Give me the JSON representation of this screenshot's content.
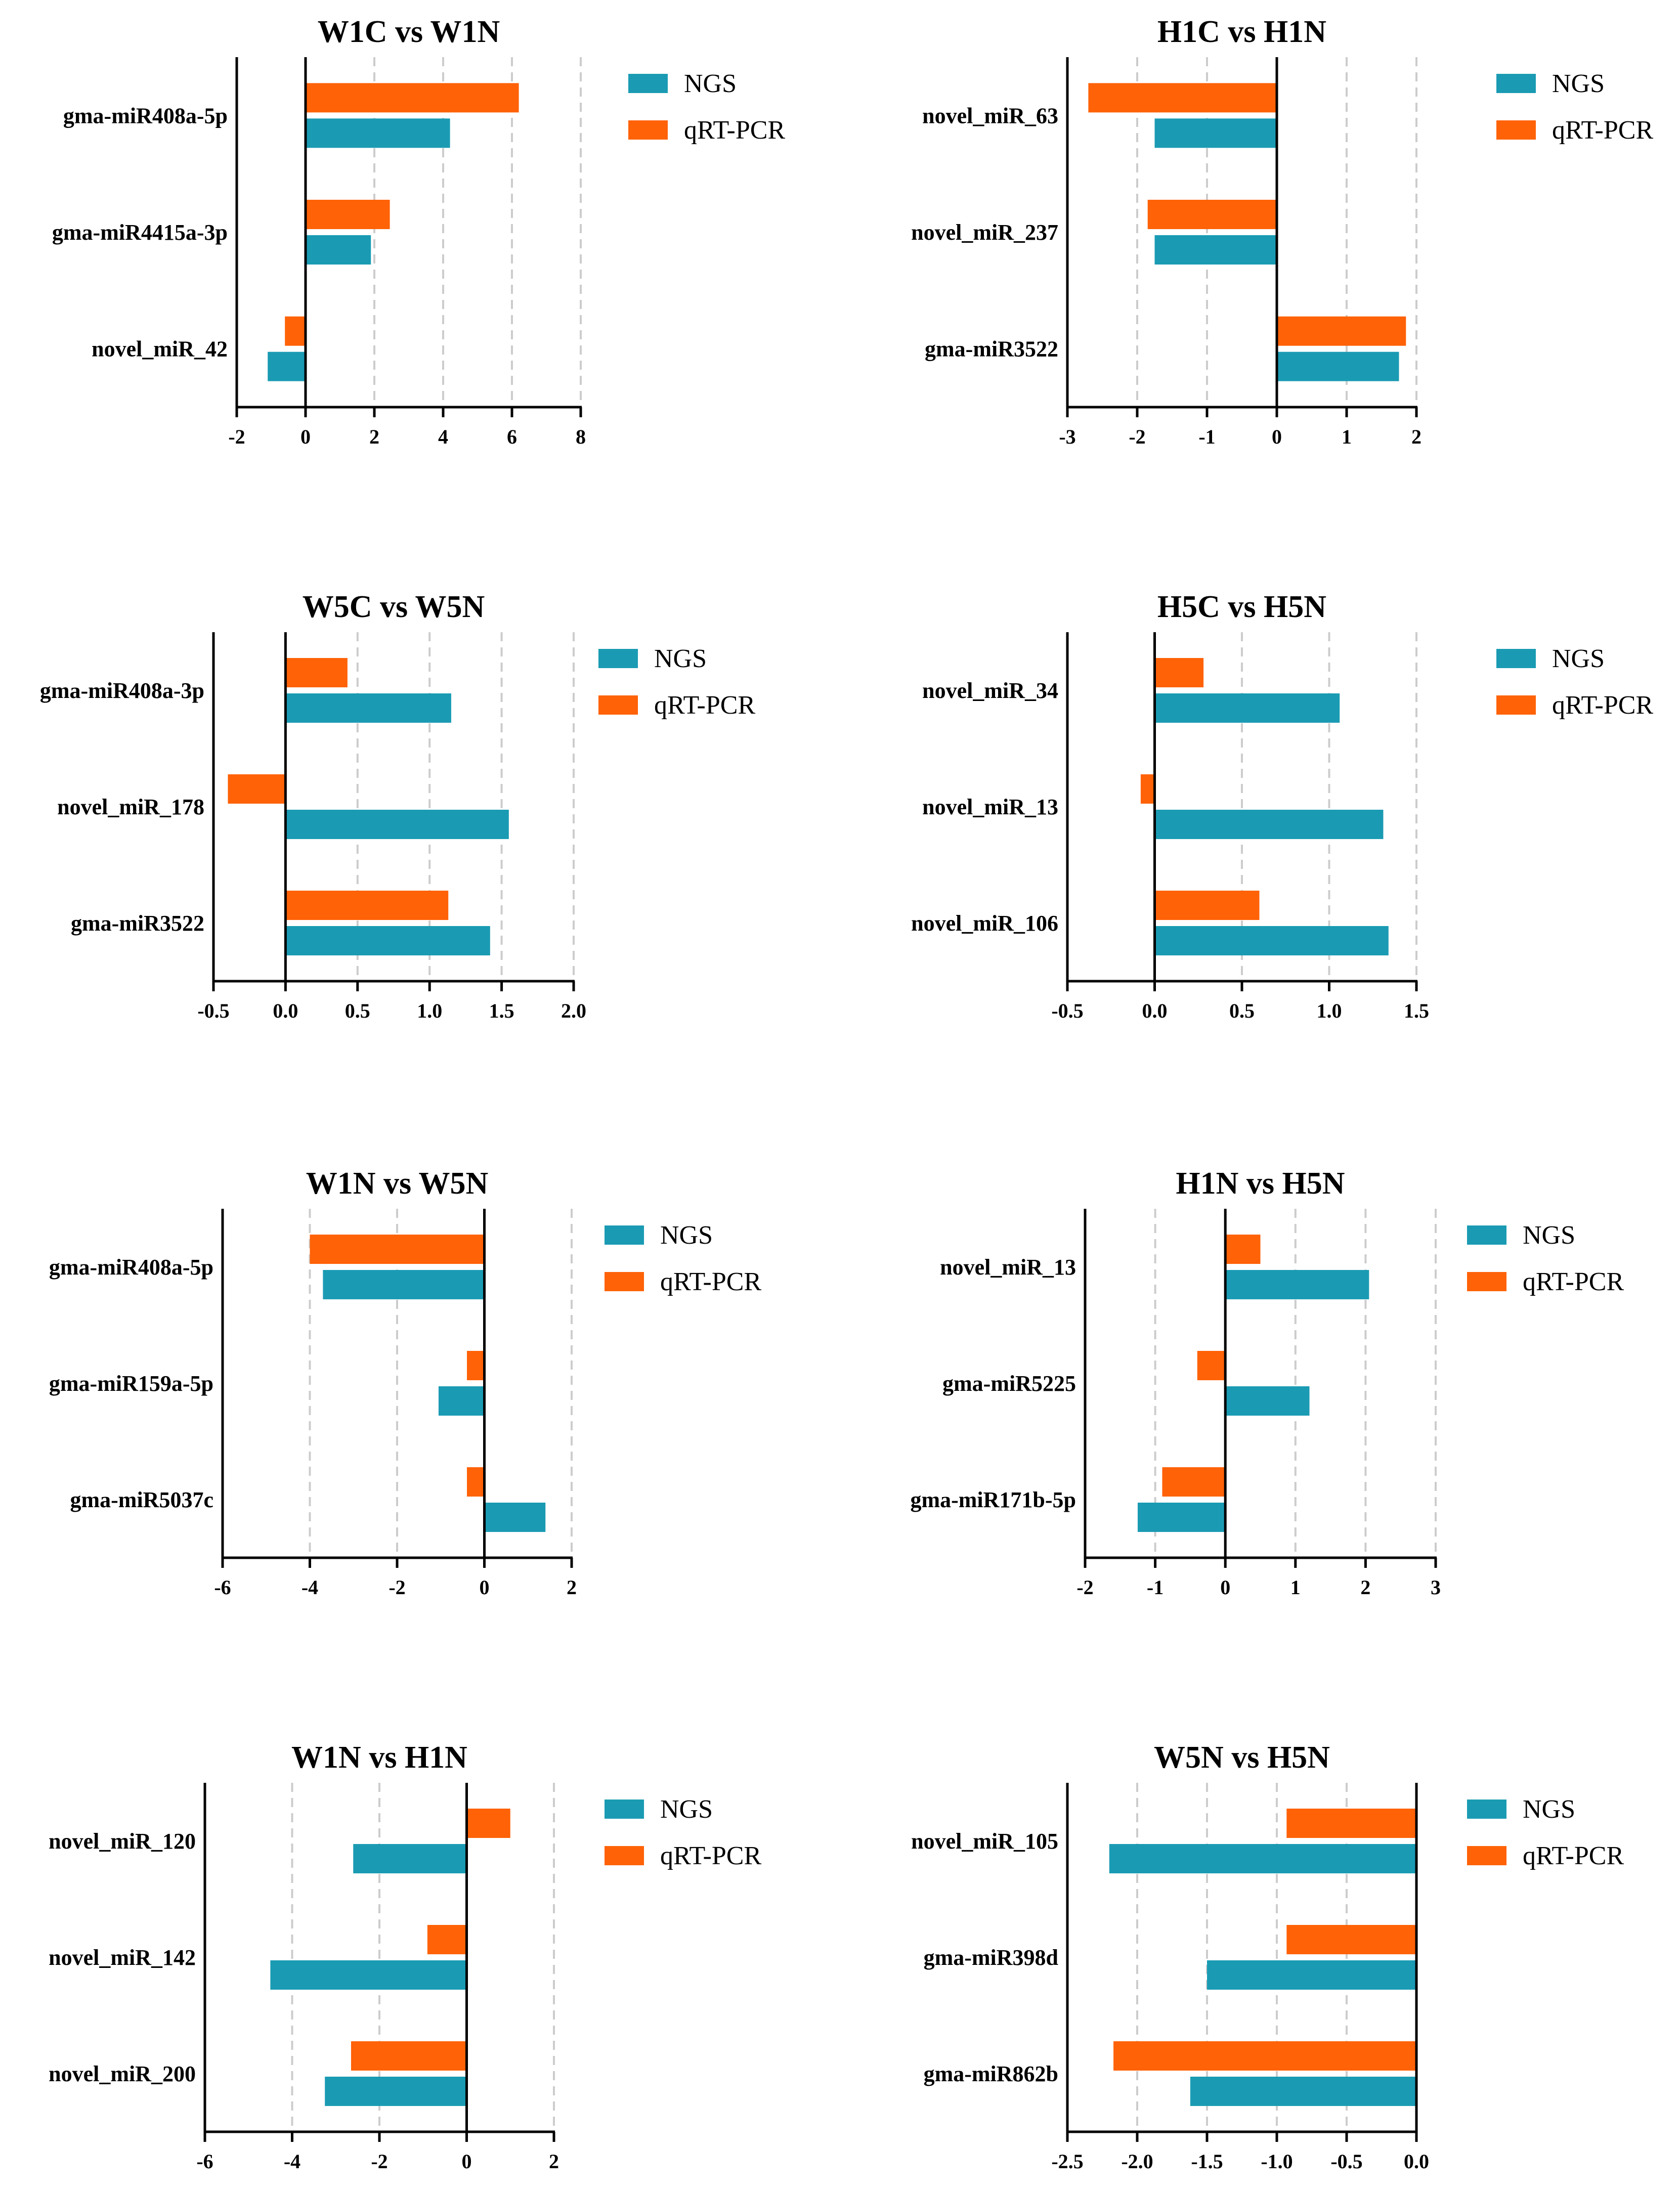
{
  "colors": {
    "ngs": "#1a9bb3",
    "qrt": "#ff6207",
    "axis": "#000000",
    "grid": "#cccccc"
  },
  "chart_data": [
    {
      "type": "bar",
      "orientation": "horizontal",
      "title": "W1C vs W1N",
      "categories": [
        "gma-miR408a-5p",
        "gma-miR4415a-3p",
        "novel_miR_42"
      ],
      "series": [
        {
          "name": "NGS",
          "values": [
            4.2,
            1.9,
            -1.1
          ]
        },
        {
          "name": "qRT-PCR",
          "values": [
            6.2,
            2.45,
            -0.6
          ]
        }
      ],
      "xlim": [
        -2,
        8
      ],
      "ticks": [
        -2,
        0,
        2,
        4,
        6,
        8
      ],
      "tick_labels": [
        "-2",
        "0",
        "2",
        "4",
        "6",
        "8"
      ],
      "legend_order": [
        "NGS",
        "qRT-PCR"
      ]
    },
    {
      "type": "bar",
      "orientation": "horizontal",
      "title": "H1C vs H1N",
      "categories": [
        "novel_miR_63",
        "novel_miR_237",
        "gma-miR3522"
      ],
      "series": [
        {
          "name": "NGS",
          "values": [
            -1.75,
            -1.75,
            1.75
          ]
        },
        {
          "name": "qRT-PCR",
          "values": [
            -2.7,
            -1.85,
            1.85
          ]
        }
      ],
      "xlim": [
        -3,
        2
      ],
      "ticks": [
        -3,
        -2,
        -1,
        0,
        1,
        2
      ],
      "tick_labels": [
        "-3",
        "-2",
        "-1",
        "0",
        "1",
        "2"
      ],
      "legend_order": [
        "NGS",
        "qRT-PCR"
      ]
    },
    {
      "type": "bar",
      "orientation": "horizontal",
      "title": "W5C vs W5N",
      "categories": [
        "gma-miR408a-3p",
        "novel_miR_178",
        "gma-miR3522"
      ],
      "series": [
        {
          "name": "NGS",
          "values": [
            1.15,
            1.55,
            1.42
          ]
        },
        {
          "name": "qRT-PCR",
          "values": [
            0.43,
            -0.4,
            1.13
          ]
        }
      ],
      "xlim": [
        -0.5,
        2.0
      ],
      "ticks": [
        -0.5,
        0,
        0.5,
        1,
        1.5,
        2
      ],
      "tick_labels": [
        "-0.5",
        "0.0",
        "0.5",
        "1.0",
        "1.5",
        "2.0"
      ],
      "legend_order": [
        "NGS",
        "qRT-PCR"
      ]
    },
    {
      "type": "bar",
      "orientation": "horizontal",
      "title": "H5C vs H5N",
      "categories": [
        "novel_miR_34",
        "novel_miR_13",
        "novel_miR_106"
      ],
      "series": [
        {
          "name": "NGS",
          "values": [
            1.06,
            1.31,
            1.34
          ]
        },
        {
          "name": "qRT-PCR",
          "values": [
            0.28,
            -0.08,
            0.6
          ]
        }
      ],
      "xlim": [
        -0.5,
        1.5
      ],
      "ticks": [
        -0.5,
        0,
        0.5,
        1,
        1.5
      ],
      "tick_labels": [
        "-0.5",
        "0.0",
        "0.5",
        "1.0",
        "1.5"
      ],
      "legend_order": [
        "NGS",
        "qRT-PCR"
      ]
    },
    {
      "type": "bar",
      "orientation": "horizontal",
      "title": "W1N vs W5N",
      "categories": [
        "gma-miR408a-5p",
        "gma-miR159a-5p",
        "gma-miR5037c"
      ],
      "series": [
        {
          "name": "NGS",
          "values": [
            -3.7,
            -1.05,
            1.4
          ]
        },
        {
          "name": "qRT-PCR",
          "values": [
            -4.0,
            -0.4,
            -0.4
          ]
        }
      ],
      "xlim": [
        -6,
        2
      ],
      "ticks": [
        -6,
        -4,
        -2,
        0,
        2
      ],
      "tick_labels": [
        "-6",
        "-4",
        "-2",
        "0",
        "2"
      ],
      "legend_order": [
        "NGS",
        "qRT-PCR"
      ]
    },
    {
      "type": "bar",
      "orientation": "horizontal",
      "title": "H1N vs H5N",
      "categories": [
        "novel_miR_13",
        "gma-miR5225",
        "gma-miR171b-5p"
      ],
      "series": [
        {
          "name": "NGS",
          "values": [
            2.05,
            1.2,
            -1.25
          ]
        },
        {
          "name": "qRT-PCR",
          "values": [
            0.5,
            -0.4,
            -0.9
          ]
        }
      ],
      "xlim": [
        -2,
        3
      ],
      "ticks": [
        -2,
        -1,
        0,
        1,
        2,
        3
      ],
      "tick_labels": [
        "-2",
        "-1",
        "0",
        "1",
        "2",
        "3"
      ],
      "legend_order": [
        "NGS",
        "qRT-PCR"
      ]
    },
    {
      "type": "bar",
      "orientation": "horizontal",
      "title": "W1N vs H1N",
      "categories": [
        "novel_miR_120",
        "novel_miR_142",
        "novel_miR_200"
      ],
      "series": [
        {
          "name": "NGS",
          "values": [
            -2.6,
            -4.5,
            -3.25
          ]
        },
        {
          "name": "qRT-PCR",
          "values": [
            1.0,
            -0.9,
            -2.65
          ]
        }
      ],
      "xlim": [
        -6,
        2
      ],
      "ticks": [
        -6,
        -4,
        -2,
        0,
        2
      ],
      "tick_labels": [
        "-6",
        "-4",
        "-2",
        "0",
        "2"
      ],
      "legend_order": [
        "NGS",
        "qRT-PCR"
      ]
    },
    {
      "type": "bar",
      "orientation": "horizontal",
      "title": "W5N vs H5N",
      "categories": [
        "novel_miR_105",
        "gma-miR398d",
        "gma-miR862b"
      ],
      "series": [
        {
          "name": "NGS",
          "values": [
            -2.2,
            -1.5,
            -1.62
          ]
        },
        {
          "name": "qRT-PCR",
          "values": [
            -0.93,
            -0.93,
            -2.17
          ]
        }
      ],
      "xlim": [
        -2.5,
        0.0
      ],
      "ticks": [
        -2.5,
        -2,
        -1.5,
        -1,
        -0.5,
        0
      ],
      "tick_labels": [
        "-2.5",
        "-2.0",
        "-1.5",
        "-1.0",
        "-0.5",
        "0.0"
      ],
      "legend_order": [
        "NGS",
        "qRT-PCR"
      ]
    }
  ]
}
